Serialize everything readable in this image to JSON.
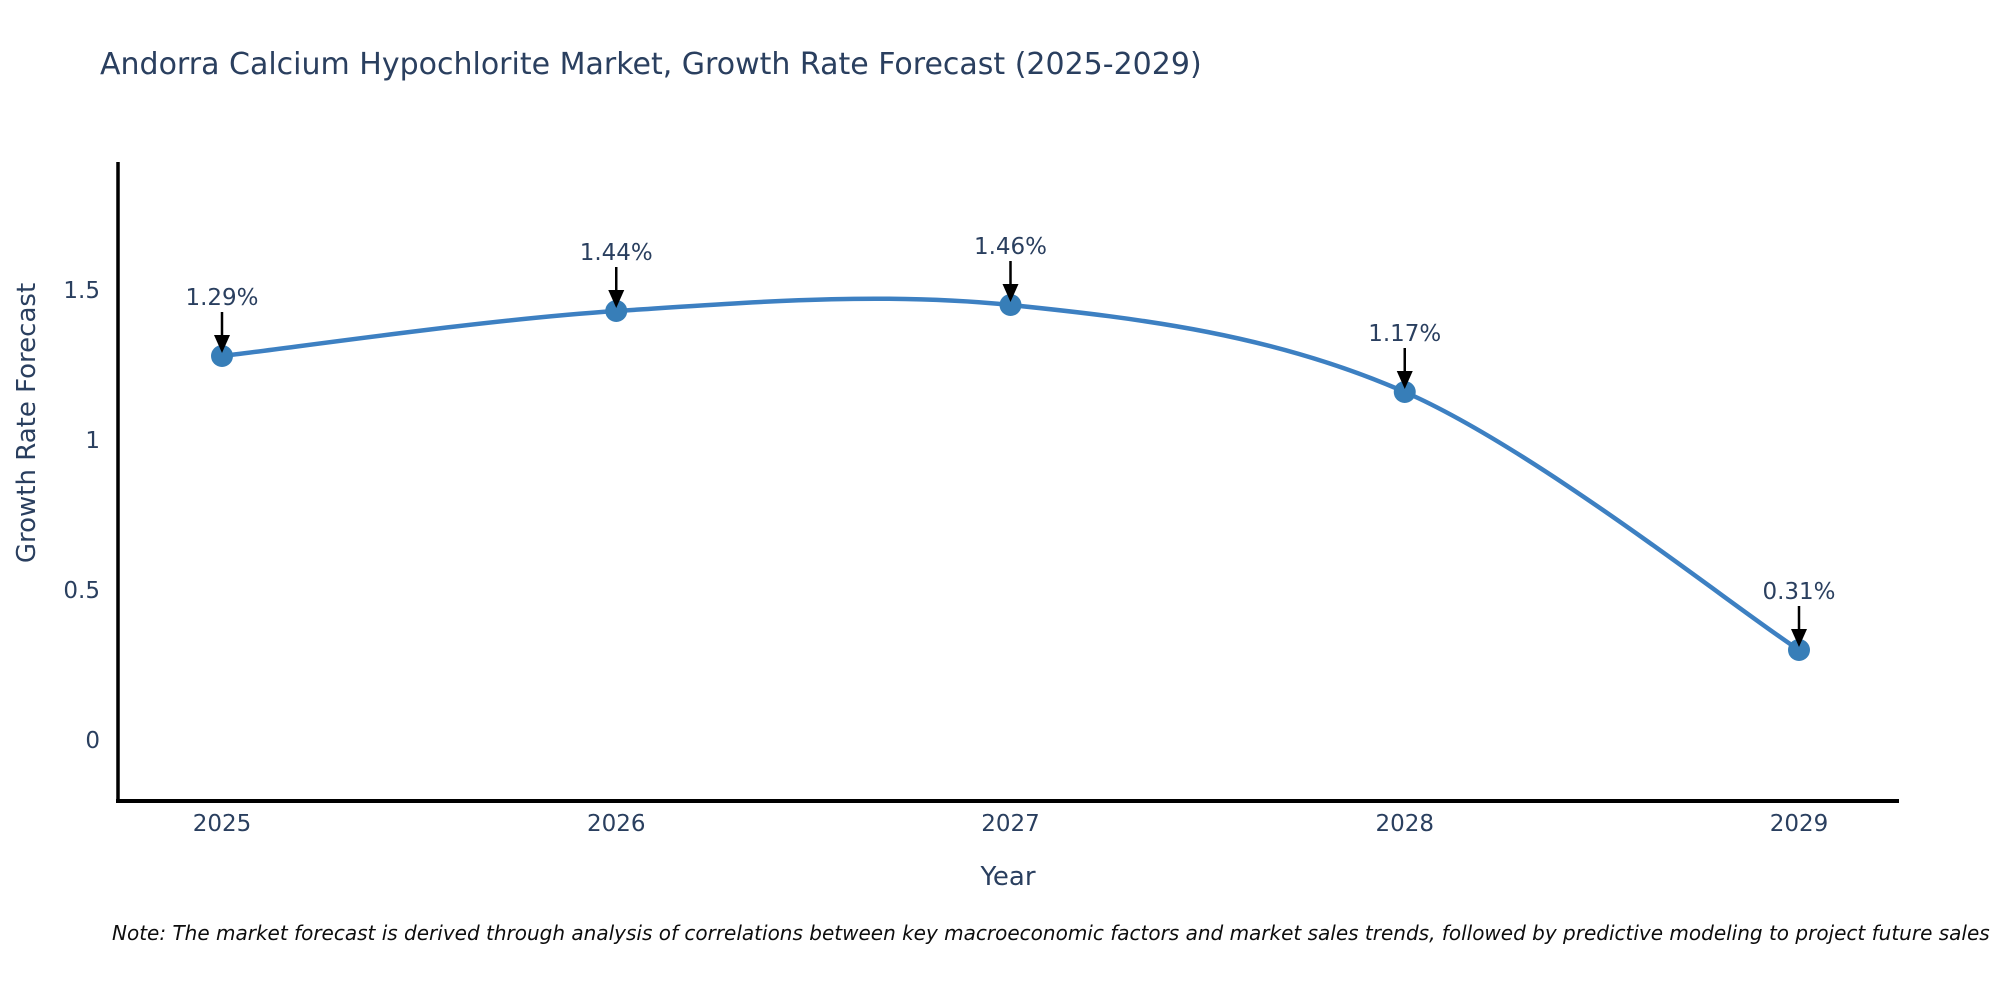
{
  "title": "Andorra Calcium Hypochlorite Market, Growth Rate Forecast (2025-2029)",
  "note": "Note: The market forecast is derived through analysis of correlations between key macroeconomic factors and market sales trends, followed by predictive modeling to project future sales",
  "chart_data": {
    "type": "line",
    "title": "Andorra Calcium Hypochlorite Market, Growth Rate Forecast (2025-2029)",
    "xlabel": "Year",
    "ylabel": "Growth Rate Forecast",
    "x": [
      2025,
      2026,
      2027,
      2028,
      2029
    ],
    "categories": [
      "2025",
      "2026",
      "2027",
      "2028",
      "2029"
    ],
    "values": [
      1.29,
      1.44,
      1.46,
      1.17,
      0.31
    ],
    "point_labels": [
      "1.29%",
      "1.44%",
      "1.46%",
      "1.17%",
      "0.31%"
    ],
    "yticks": [
      0,
      0.5,
      1,
      1.5
    ],
    "ytick_labels": [
      "0",
      "0.5",
      "1",
      "1.5"
    ],
    "ylim": [
      -0.19,
      1.94
    ],
    "grid": false,
    "legend": "none",
    "line_color": "#3d80c2",
    "marker_color": "#377eb8",
    "axis_color": "#000000",
    "arrow_color": "#000000",
    "text_color": "#2a3f5f"
  }
}
